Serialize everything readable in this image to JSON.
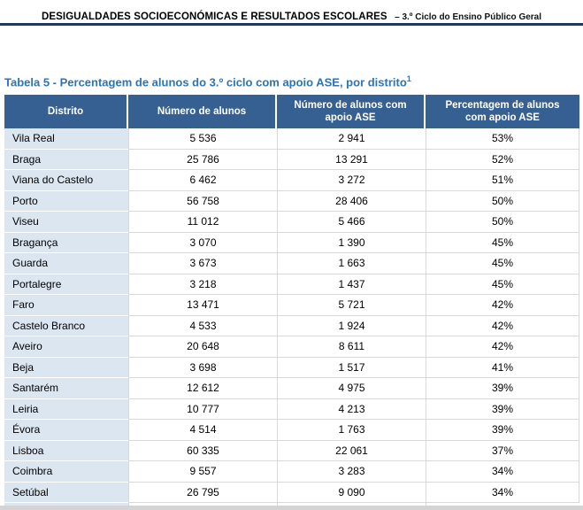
{
  "document": {
    "header": {
      "title": "DESIGUALDADES SOCIOECONÓMICAS E RESULTADOS ESCOLARES",
      "subtitle": "– 3.º Ciclo do Ensino Público Geral"
    },
    "caption": {
      "text": "Tabela 5 - Percentagem de alunos do 3.º ciclo com apoio ASE, por distrito",
      "footnote_ref": "1"
    }
  },
  "table": {
    "headers": [
      "Distrito",
      "Número de alunos",
      "Número de alunos com apoio ASE",
      "Percentagem de alunos com apoio ASE"
    ],
    "rows": [
      [
        "Vila Real",
        "5 536",
        "2 941",
        "53%"
      ],
      [
        "Braga",
        "25 786",
        "13 291",
        "52%"
      ],
      [
        "Viana do Castelo",
        "6 462",
        "3 272",
        "51%"
      ],
      [
        "Porto",
        "56 758",
        "28 406",
        "50%"
      ],
      [
        "Viseu",
        "11 012",
        "5 466",
        "50%"
      ],
      [
        "Bragança",
        "3 070",
        "1 390",
        "45%"
      ],
      [
        "Guarda",
        "3 673",
        "1 663",
        "45%"
      ],
      [
        "Portalegre",
        "3 218",
        "1 437",
        "45%"
      ],
      [
        "Faro",
        "13 471",
        "5 721",
        "42%"
      ],
      [
        "Castelo Branco",
        "4 533",
        "1 924",
        "42%"
      ],
      [
        "Aveiro",
        "20 648",
        "8 611",
        "42%"
      ],
      [
        "Beja",
        "3 698",
        "1 517",
        "41%"
      ],
      [
        "Santarém",
        "12 612",
        "4 975",
        "39%"
      ],
      [
        "Leiria",
        "10 777",
        "4 213",
        "39%"
      ],
      [
        "Évora",
        "4 514",
        "1 763",
        "39%"
      ],
      [
        "Lisboa",
        "60 335",
        "22 061",
        "37%"
      ],
      [
        "Coimbra",
        "9 557",
        "3 283",
        "34%"
      ],
      [
        "Setúbal",
        "26 795",
        "9 090",
        "34%"
      ]
    ]
  },
  "colors": {
    "header_bg": "#366092",
    "first_col_bg": "#DCE6F1",
    "rule": "#1F3864",
    "caption_text": "#2E74B5",
    "grid_line": "#D9D9D9"
  }
}
